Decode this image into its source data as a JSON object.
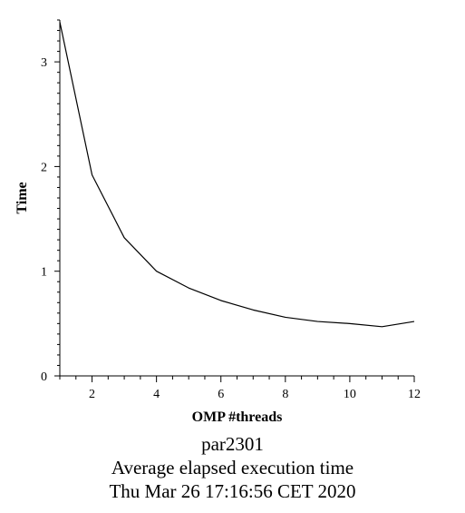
{
  "chart_data": {
    "type": "line",
    "xlabel": "OMP #threads",
    "ylabel": "Time",
    "xlim": [
      1,
      12
    ],
    "ylim": [
      0,
      3.4
    ],
    "xticks": [
      2,
      4,
      6,
      8,
      10,
      12
    ],
    "yticks": [
      0,
      1,
      2,
      3
    ],
    "grid": false,
    "series": [
      {
        "color": "#000000",
        "x": [
          1,
          2,
          3,
          4,
          5,
          6,
          7,
          8,
          9,
          10,
          11,
          12
        ],
        "y": [
          3.38,
          1.92,
          1.32,
          1.0,
          0.84,
          0.72,
          0.63,
          0.56,
          0.52,
          0.5,
          0.47,
          0.52
        ]
      }
    ]
  },
  "caption": {
    "line1": "par2301",
    "line2": "Average elapsed execution time",
    "line3": "Thu Mar 26 17:16:56 CET 2020"
  }
}
